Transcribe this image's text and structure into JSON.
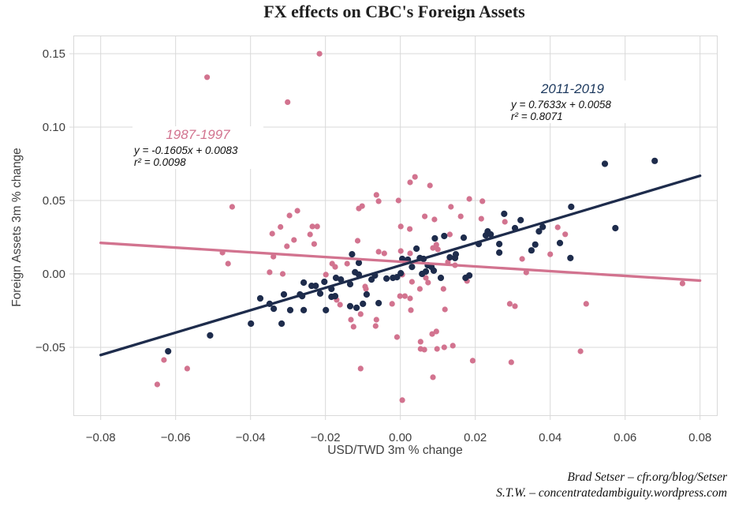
{
  "title": "FX effects on CBC's Foreign Assets",
  "axes": {
    "x_title": "USD/TWD 3m % change",
    "y_title": "Foreign Assets 3m % change"
  },
  "annotations": {
    "pink": {
      "period": "1987-1997",
      "equation": "y = -0.1605x + 0.0083",
      "r2": "r² = 0.0098"
    },
    "navy": {
      "period": "2011-2019",
      "equation": "y = 0.7633x + 0.0058",
      "r2": "r² = 0.8071"
    }
  },
  "attribution": {
    "line1": "Brad Setser – cfr.org/blog/Setser",
    "line2": "S.T.W. – concentratedambiguity.wordpress.com"
  },
  "colors": {
    "pink": "#d2738f",
    "navy": "#1e2c4c",
    "grid": "#d9d9d9",
    "axis_text": "#404040"
  },
  "chart_data": {
    "type": "scatter",
    "title": "FX effects on CBC's Foreign Assets",
    "xlabel": "USD/TWD 3m % change",
    "ylabel": "Foreign Assets 3m % change",
    "xlim": [
      -0.0873,
      0.0847
    ],
    "ylim": [
      -0.0968,
      0.1624
    ],
    "grid": true,
    "x_ticks": {
      "values": [
        -0.08,
        -0.06,
        -0.04,
        -0.02,
        0.0,
        0.02,
        0.04,
        0.06,
        0.08
      ],
      "labels": [
        "−0.08",
        "−0.06",
        "−0.04",
        "−0.02",
        "0.00",
        "0.02",
        "0.04",
        "0.06",
        "0.08"
      ]
    },
    "y_ticks": {
      "values": [
        0.15,
        0.1,
        0.05,
        0.0,
        -0.05
      ],
      "labels": [
        "0.15",
        "0.10",
        "0.05",
        "0.00",
        "−0.05"
      ]
    },
    "series": [
      {
        "name": "1987-1997",
        "color": "#d2738f",
        "marker_radius": 3.6,
        "trend": {
          "slope": -0.1605,
          "intercept": 0.0083,
          "r2": 0.0098,
          "x_range": [
            -0.08,
            0.08
          ]
        },
        "points": [
          [
            -0.0516,
            0.134
          ],
          [
            -0.0301,
            0.117
          ],
          [
            -0.0216,
            0.15
          ],
          [
            -0.0449,
            0.0457
          ],
          [
            -0.0296,
            0.0398
          ],
          [
            -0.032,
            0.032
          ],
          [
            -0.0342,
            0.0274
          ],
          [
            -0.0303,
            0.0188
          ],
          [
            -0.0475,
            0.0145
          ],
          [
            -0.0339,
            0.0118
          ],
          [
            -0.046,
            0.007
          ],
          [
            -0.0349,
            0.0011
          ],
          [
            -0.0314,
            0.0
          ],
          [
            -0.0275,
            0.043
          ],
          [
            -0.0235,
            0.0323
          ],
          [
            -0.0222,
            0.0323
          ],
          [
            -0.0241,
            0.0269
          ],
          [
            -0.0111,
            0.0446
          ],
          [
            -0.0102,
            0.0462
          ],
          [
            -0.0064,
            0.0538
          ],
          [
            -0.0058,
            0.0495
          ],
          [
            -0.0005,
            0.05
          ],
          [
            0.0001,
            0.0323
          ],
          [
            0.0026,
            0.0624
          ],
          [
            0.0039,
            0.0661
          ],
          [
            0.0079,
            0.0602
          ],
          [
            0.0184,
            0.0511
          ],
          [
            0.0135,
            0.0457
          ],
          [
            0.0219,
            0.0495
          ],
          [
            0.0065,
            0.0392
          ],
          [
            0.0091,
            0.0371
          ],
          [
            0.0161,
            0.0392
          ],
          [
            0.0216,
            0.0376
          ],
          [
            0.0279,
            0.0355
          ],
          [
            0.0025,
            0.0306
          ],
          [
            0.0132,
            0.0269
          ],
          [
            0.042,
            0.0317
          ],
          [
            0.044,
            0.027
          ],
          [
            0.04,
            0.0134
          ],
          [
            0.0325,
            0.0102
          ],
          [
            0.0336,
            0.001
          ],
          [
            0.0753,
            -0.0065
          ],
          [
            -0.0284,
            0.0231
          ],
          [
            -0.023,
            0.0204
          ],
          [
            -0.0114,
            0.0226
          ],
          [
            -0.0182,
            0.007
          ],
          [
            -0.0174,
            0.0048
          ],
          [
            -0.0142,
            0.007
          ],
          [
            -0.0199,
            -0.0005
          ],
          [
            -0.0058,
            0.0151
          ],
          [
            -0.0043,
            0.014
          ],
          [
            0.0001,
            0.0156
          ],
          [
            -0.0094,
            -0.0086
          ],
          [
            -0.0092,
            -0.0102
          ],
          [
            0.0026,
            0.014
          ],
          [
            0.0087,
            0.0177
          ],
          [
            0.01,
            0.0167
          ],
          [
            0.0096,
            0.0199
          ],
          [
            0.0127,
            0.0081
          ],
          [
            0.0146,
            0.0059
          ],
          [
            0.0068,
            -0.0027
          ],
          [
            0.0031,
            -0.0054
          ],
          [
            0.0074,
            -0.0059
          ],
          [
            0.0052,
            -0.0102
          ],
          [
            0.0026,
            -0.0167
          ],
          [
            0.0115,
            -0.0102
          ],
          [
            0.0178,
            -0.0048
          ],
          [
            0.0005,
            -0.0005
          ],
          [
            -0.017,
            -0.0177
          ],
          [
            -0.0161,
            -0.021
          ],
          [
            -0.0132,
            -0.0312
          ],
          [
            -0.0125,
            -0.036
          ],
          [
            -0.0106,
            -0.0274
          ],
          [
            -0.0064,
            -0.0312
          ],
          [
            -0.0066,
            -0.0355
          ],
          [
            -0.0022,
            -0.0204
          ],
          [
            -0.0001,
            -0.0151
          ],
          [
            0.0012,
            -0.0151
          ],
          [
            -0.0009,
            -0.043
          ],
          [
            0.0028,
            -0.0247
          ],
          [
            0.0054,
            -0.0462
          ],
          [
            0.0054,
            -0.0511
          ],
          [
            0.0064,
            -0.0516
          ],
          [
            0.0085,
            -0.0409
          ],
          [
            0.0096,
            -0.0392
          ],
          [
            0.0098,
            -0.0511
          ],
          [
            0.0117,
            -0.05
          ],
          [
            0.0119,
            -0.0242
          ],
          [
            0.014,
            -0.0489
          ],
          [
            0.0193,
            -0.0591
          ],
          [
            0.0292,
            -0.0204
          ],
          [
            0.0306,
            -0.022
          ],
          [
            0.0296,
            -0.0602
          ],
          [
            -0.0106,
            -0.0645
          ],
          [
            0.0087,
            -0.0704
          ],
          [
            0.0005,
            -0.086
          ],
          [
            -0.0631,
            -0.0586
          ],
          [
            -0.0569,
            -0.0645
          ],
          [
            -0.0649,
            -0.0753
          ],
          [
            0.0496,
            -0.0204
          ],
          [
            0.0481,
            -0.0527
          ]
        ]
      },
      {
        "name": "2011-2019",
        "color": "#1e2c4c",
        "marker_radius": 4.1,
        "trend": {
          "slope": 0.7633,
          "intercept": 0.0058,
          "r2": 0.8071,
          "x_range": [
            -0.08,
            0.08
          ]
        },
        "points": [
          [
            0.0546,
            0.075
          ],
          [
            0.0679,
            0.077
          ],
          [
            0.0456,
            0.0457
          ],
          [
            0.0321,
            0.0366
          ],
          [
            0.0306,
            0.0312
          ],
          [
            0.037,
            0.029
          ],
          [
            0.038,
            0.032
          ],
          [
            0.036,
            0.02
          ],
          [
            0.035,
            0.016
          ],
          [
            0.0426,
            0.021
          ],
          [
            0.0454,
            0.0108
          ],
          [
            0.0574,
            0.0312
          ],
          [
            0.0277,
            0.0409
          ],
          [
            0.0233,
            0.029
          ],
          [
            0.0043,
            0.0172
          ],
          [
            0.0092,
            0.0242
          ],
          [
            0.0117,
            0.0258
          ],
          [
            0.0169,
            0.0247
          ],
          [
            0.0228,
            0.0263
          ],
          [
            0.0241,
            0.0269
          ],
          [
            0.0209,
            0.0204
          ],
          [
            0.0264,
            0.0204
          ],
          [
            0.0264,
            0.0145
          ],
          [
            0.0148,
            0.0134
          ],
          [
            0.0132,
            0.0113
          ],
          [
            0.0146,
            0.0108
          ],
          [
            0.0052,
            0.0108
          ],
          [
            0.0062,
            0.0102
          ],
          [
            0.002,
            0.0097
          ],
          [
            0.0005,
            0.0102
          ],
          [
            0.0031,
            0.0048
          ],
          [
            0.0073,
            0.0059
          ],
          [
            0.0083,
            0.0048
          ],
          [
            0.0089,
            0.0022
          ],
          [
            0.0058,
            0.0
          ],
          [
            0.0068,
            0.0016
          ],
          [
            0.0184,
            -0.0011
          ],
          [
            0.0174,
            -0.0027
          ],
          [
            0.0108,
            -0.0027
          ],
          [
            -0.0258,
            -0.0059
          ],
          [
            -0.0237,
            -0.0081
          ],
          [
            -0.0226,
            -0.0081
          ],
          [
            -0.0203,
            -0.0054
          ],
          [
            -0.0184,
            -0.0102
          ],
          [
            -0.0214,
            -0.0134
          ],
          [
            -0.0268,
            -0.014
          ],
          [
            -0.0172,
            -0.0027
          ],
          [
            -0.0159,
            -0.0038
          ],
          [
            -0.0134,
            -0.007
          ],
          [
            -0.0121,
            0.0011
          ],
          [
            -0.0111,
            -0.0005
          ],
          [
            -0.0077,
            -0.0038
          ],
          [
            -0.0068,
            -0.0011
          ],
          [
            -0.0037,
            -0.0032
          ],
          [
            -0.002,
            -0.0027
          ],
          [
            -0.0009,
            -0.0022
          ],
          [
            0.0001,
            0.0005
          ],
          [
            -0.0111,
            0.0075
          ],
          [
            -0.0129,
            0.0134
          ],
          [
            -0.0262,
            -0.0151
          ],
          [
            -0.0184,
            -0.0156
          ],
          [
            -0.0174,
            -0.0151
          ],
          [
            -0.0258,
            -0.0247
          ],
          [
            -0.0199,
            -0.0247
          ],
          [
            -0.0117,
            -0.0231
          ],
          [
            -0.01,
            -0.0204
          ],
          [
            -0.0058,
            -0.0199
          ],
          [
            -0.009,
            -0.014
          ],
          [
            -0.0134,
            -0.022
          ],
          [
            -0.0374,
            -0.0167
          ],
          [
            -0.0349,
            -0.0204
          ],
          [
            -0.0338,
            -0.0237
          ],
          [
            -0.0311,
            -0.014
          ],
          [
            -0.0294,
            -0.0247
          ],
          [
            -0.0317,
            -0.0339
          ],
          [
            -0.0399,
            -0.0339
          ],
          [
            -0.0508,
            -0.0419
          ],
          [
            -0.062,
            -0.0527
          ]
        ]
      }
    ]
  }
}
